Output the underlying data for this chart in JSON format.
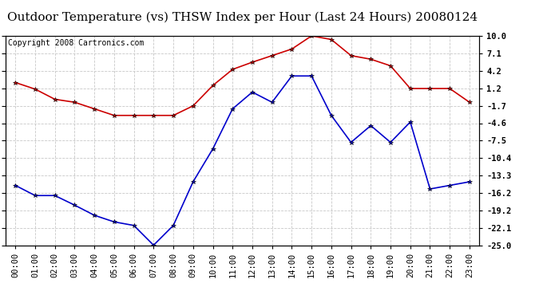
{
  "title": "Outdoor Temperature (vs) THSW Index per Hour (Last 24 Hours) 20080124",
  "copyright": "Copyright 2008 Cartronics.com",
  "hours": [
    "00:00",
    "01:00",
    "02:00",
    "03:00",
    "04:00",
    "05:00",
    "06:00",
    "07:00",
    "08:00",
    "09:00",
    "10:00",
    "11:00",
    "12:00",
    "13:00",
    "14:00",
    "15:00",
    "16:00",
    "17:00",
    "18:00",
    "19:00",
    "20:00",
    "21:00",
    "22:00",
    "23:00"
  ],
  "temp_red": [
    2.2,
    1.1,
    -0.6,
    -1.1,
    -2.2,
    -3.3,
    -3.3,
    -3.3,
    -3.3,
    -1.7,
    1.7,
    4.4,
    5.6,
    6.7,
    7.8,
    10.0,
    9.4,
    6.7,
    6.1,
    5.0,
    1.2,
    1.2,
    1.2,
    -1.1
  ],
  "thsw_blue": [
    -15.0,
    -16.7,
    -16.7,
    -18.3,
    -20.0,
    -21.1,
    -21.7,
    -25.0,
    -21.7,
    -14.4,
    -8.9,
    -2.2,
    0.6,
    -1.1,
    3.3,
    3.3,
    -3.3,
    -7.8,
    -5.0,
    -7.8,
    -4.4,
    -15.6,
    -15.0,
    -14.4
  ],
  "ylim": [
    -25.0,
    10.0
  ],
  "yticks": [
    10.0,
    7.1,
    4.2,
    1.2,
    -1.7,
    -4.6,
    -7.5,
    -10.4,
    -13.3,
    -16.2,
    -19.2,
    -22.1,
    -25.0
  ],
  "red_color": "#cc0000",
  "blue_color": "#0000cc",
  "bg_color": "#ffffff",
  "grid_color": "#c8c8c8",
  "title_fontsize": 11,
  "copyright_fontsize": 7,
  "tick_fontsize": 7.5
}
